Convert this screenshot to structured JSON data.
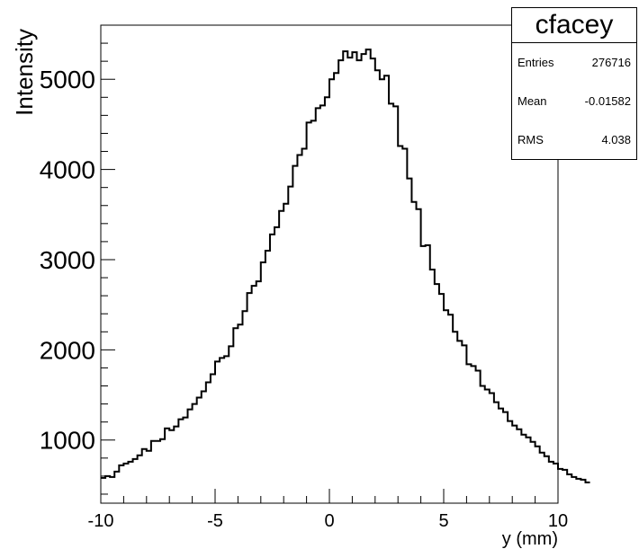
{
  "chart_data": {
    "type": "histogram",
    "xlabel": "y (mm)",
    "ylabel": "Intensity",
    "xlim": [
      -10,
      10
    ],
    "ylim": [
      300,
      5600
    ],
    "x_ticks": [
      -10,
      -5,
      0,
      5,
      10
    ],
    "x_tick_labels": [
      "-10",
      "-5",
      "0",
      "5",
      "10"
    ],
    "y_ticks": [
      1000,
      2000,
      3000,
      4000,
      5000
    ],
    "y_tick_labels": [
      "1000",
      "2000",
      "3000",
      "4000",
      "5000"
    ],
    "bin_width": 0.2,
    "grid": false,
    "line_color": "#000000",
    "values": [
      580,
      600,
      590,
      650,
      720,
      740,
      760,
      790,
      830,
      900,
      880,
      990,
      990,
      1010,
      1130,
      1110,
      1150,
      1230,
      1250,
      1340,
      1400,
      1470,
      1540,
      1640,
      1730,
      1870,
      1910,
      1930,
      2040,
      2240,
      2280,
      2430,
      2630,
      2710,
      2760,
      2970,
      3100,
      3280,
      3360,
      3540,
      3620,
      3810,
      4040,
      4160,
      4230,
      4520,
      4540,
      4680,
      4710,
      4800,
      5000,
      5070,
      5210,
      5310,
      5240,
      5300,
      5210,
      5280,
      5330,
      5230,
      5100,
      5000,
      5040,
      4730,
      4700,
      4260,
      4230,
      3900,
      3640,
      3560,
      3150,
      3160,
      2890,
      2730,
      2620,
      2440,
      2390,
      2200,
      2100,
      2050,
      1840,
      1820,
      1770,
      1600,
      1560,
      1520,
      1420,
      1350,
      1310,
      1210,
      1160,
      1120,
      1060,
      1030,
      980,
      930,
      860,
      820,
      760,
      740,
      680,
      670,
      620,
      590,
      570,
      560,
      530
    ]
  },
  "stats_box": {
    "title": "cfacey",
    "rows": [
      {
        "label": "Entries",
        "value": "276716"
      },
      {
        "label": "Mean",
        "value": "-0.01582"
      },
      {
        "label": "RMS",
        "value": "4.038"
      }
    ]
  }
}
